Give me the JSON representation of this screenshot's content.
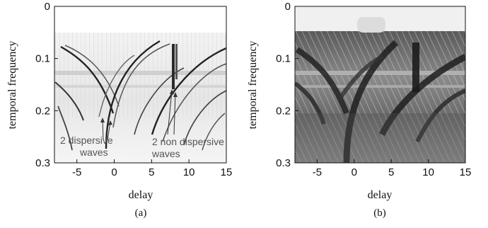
{
  "chart_data": [
    {
      "type": "heatmap",
      "panel_label": "(a)",
      "xlabel": "delay",
      "ylabel": "temporal frequency",
      "xlim": [
        -8,
        15
      ],
      "ylim": [
        0,
        0.3
      ],
      "y_axis_inverted": true,
      "xticks": [
        "-5",
        "0",
        "5",
        "10",
        "15"
      ],
      "yticks": [
        "0",
        "0.1",
        "0.2",
        "0.3"
      ],
      "colormap": "grayscale (dark = high)",
      "background": "white",
      "annotations": [
        {
          "text_lines": [
            "2 dispersive",
            "waves"
          ],
          "arrow_targets_delay": [
            -2.0,
            -1.0
          ]
        },
        {
          "text_lines": [
            "2 non dispersive",
            "waves"
          ],
          "arrow_targets_delay": [
            7.8,
            8.3
          ]
        }
      ]
    },
    {
      "type": "heatmap",
      "panel_label": "(b)",
      "xlabel": "delay",
      "ylabel": "temporal frequency",
      "xlim": [
        -8,
        15
      ],
      "ylim": [
        0,
        0.3
      ],
      "y_axis_inverted": true,
      "xticks": [
        "-5",
        "0",
        "5",
        "10",
        "15"
      ],
      "yticks": [
        "0",
        "0.1",
        "0.2",
        "0.3"
      ],
      "colormap": "grayscale (dark = high)",
      "background": "light gray"
    }
  ]
}
